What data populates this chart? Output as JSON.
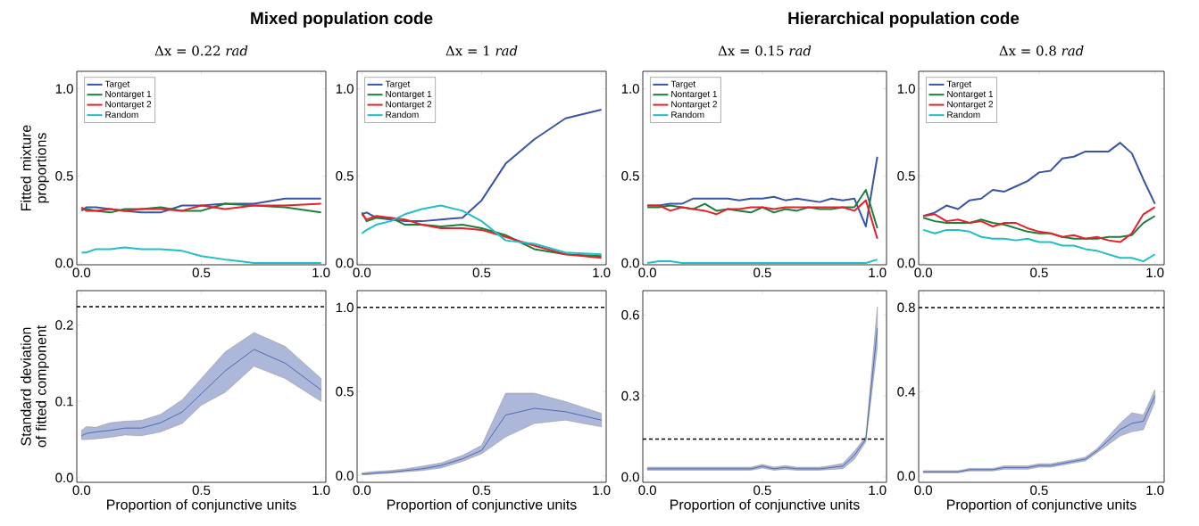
{
  "chart_data": [
    {
      "type": "line",
      "title": "Mixed population code",
      "subtitle": "Δx = 0.22 *rad*",
      "ylabel": "Fitted mixture proportions",
      "legend": "top left",
      "x": [
        0,
        0.02,
        0.06,
        0.12,
        0.18,
        0.25,
        0.33,
        0.42,
        0.5,
        0.6,
        0.72,
        0.85,
        1.0
      ],
      "xlim": [
        -0.02,
        1.02
      ],
      "xticks": [
        {
          "value": 0,
          "label": "0.0"
        },
        {
          "value": 0.5,
          "label": "0.5"
        },
        {
          "value": 1,
          "label": "1.0"
        }
      ],
      "ylim": [
        -0.01,
        1.1
      ],
      "yticks": [
        {
          "value": 0,
          "label": "0.0"
        },
        {
          "value": 0.5,
          "label": "0.5"
        },
        {
          "value": 1,
          "label": "1.0"
        }
      ],
      "series": [
        {
          "name": "Target",
          "color": "#3a54a4",
          "values": [
            0.3,
            0.32,
            0.32,
            0.31,
            0.3,
            0.29,
            0.29,
            0.33,
            0.33,
            0.34,
            0.34,
            0.37,
            0.37
          ]
        },
        {
          "name": "Nontarget 1",
          "color": "#1a7f3a",
          "values": [
            0.31,
            0.31,
            0.3,
            0.29,
            0.31,
            0.31,
            0.32,
            0.3,
            0.3,
            0.34,
            0.33,
            0.32,
            0.29
          ]
        },
        {
          "name": "Nontarget 2",
          "color": "#e8202a",
          "values": [
            0.32,
            0.3,
            0.3,
            0.31,
            0.3,
            0.31,
            0.31,
            0.3,
            0.33,
            0.31,
            0.33,
            0.33,
            0.34
          ]
        },
        {
          "name": "Random",
          "color": "#1fbfc6",
          "values": [
            0.06,
            0.06,
            0.08,
            0.08,
            0.09,
            0.08,
            0.08,
            0.07,
            0.04,
            0.02,
            0.0,
            0.0,
            0.0
          ]
        }
      ]
    },
    {
      "type": "line",
      "subtitle": "Δx = 1 *rad*",
      "legend": "top left",
      "x": [
        0,
        0.02,
        0.06,
        0.12,
        0.18,
        0.25,
        0.33,
        0.42,
        0.5,
        0.6,
        0.72,
        0.85,
        1.0
      ],
      "xlim": [
        -0.02,
        1.02
      ],
      "xticks": [
        {
          "value": 0,
          "label": "0.0"
        },
        {
          "value": 0.5,
          "label": "0.5"
        },
        {
          "value": 1,
          "label": "1.0"
        }
      ],
      "ylim": [
        -0.01,
        1.1
      ],
      "yticks": [
        {
          "value": 0,
          "label": "0.0"
        },
        {
          "value": 0.5,
          "label": "0.5"
        },
        {
          "value": 1,
          "label": "1.0"
        }
      ],
      "series": [
        {
          "name": "Target",
          "color": "#3a54a4",
          "values": [
            0.28,
            0.29,
            0.26,
            0.25,
            0.24,
            0.24,
            0.25,
            0.26,
            0.36,
            0.57,
            0.71,
            0.83,
            0.88
          ]
        },
        {
          "name": "Nontarget 1",
          "color": "#1a7f3a",
          "values": [
            0.29,
            0.24,
            0.26,
            0.26,
            0.22,
            0.22,
            0.21,
            0.22,
            0.2,
            0.16,
            0.08,
            0.05,
            0.04
          ]
        },
        {
          "name": "Nontarget 2",
          "color": "#e8202a",
          "values": [
            0.28,
            0.25,
            0.27,
            0.26,
            0.25,
            0.22,
            0.2,
            0.2,
            0.19,
            0.15,
            0.1,
            0.05,
            0.03
          ]
        },
        {
          "name": "Random",
          "color": "#1fbfc6",
          "values": [
            0.17,
            0.19,
            0.22,
            0.24,
            0.28,
            0.31,
            0.33,
            0.3,
            0.24,
            0.13,
            0.11,
            0.06,
            0.05
          ]
        }
      ]
    },
    {
      "type": "line",
      "title": "Hierarchical population code",
      "subtitle": "Δx = 0.15 *rad*",
      "legend": "top left",
      "x": [
        0,
        0.05,
        0.1,
        0.15,
        0.2,
        0.25,
        0.3,
        0.35,
        0.4,
        0.45,
        0.5,
        0.55,
        0.6,
        0.65,
        0.7,
        0.75,
        0.8,
        0.85,
        0.9,
        0.95,
        1.0
      ],
      "xlim": [
        -0.02,
        1.04
      ],
      "xticks": [
        {
          "value": 0,
          "label": "0.0"
        },
        {
          "value": 0.5,
          "label": "0.5"
        },
        {
          "value": 1,
          "label": "1.0"
        }
      ],
      "ylim": [
        -0.01,
        1.1
      ],
      "yticks": [
        {
          "value": 0,
          "label": "0.0"
        },
        {
          "value": 0.5,
          "label": "0.5"
        },
        {
          "value": 1,
          "label": "1.0"
        }
      ],
      "series": [
        {
          "name": "Target",
          "color": "#3a54a4",
          "values": [
            0.33,
            0.33,
            0.34,
            0.34,
            0.37,
            0.37,
            0.37,
            0.37,
            0.36,
            0.37,
            0.37,
            0.38,
            0.36,
            0.37,
            0.36,
            0.35,
            0.37,
            0.36,
            0.37,
            0.21,
            0.61
          ]
        },
        {
          "name": "Nontarget 1",
          "color": "#1a7f3a",
          "values": [
            0.32,
            0.32,
            0.33,
            0.32,
            0.31,
            0.34,
            0.3,
            0.31,
            0.3,
            0.29,
            0.32,
            0.29,
            0.31,
            0.3,
            0.32,
            0.31,
            0.31,
            0.32,
            0.32,
            0.42,
            0.2
          ]
        },
        {
          "name": "Nontarget 2",
          "color": "#e8202a",
          "values": [
            0.33,
            0.33,
            0.3,
            0.32,
            0.31,
            0.3,
            0.28,
            0.31,
            0.31,
            0.32,
            0.32,
            0.31,
            0.32,
            0.32,
            0.32,
            0.32,
            0.32,
            0.32,
            0.3,
            0.36,
            0.14
          ]
        },
        {
          "name": "Random",
          "color": "#1fbfc6",
          "values": [
            0.0,
            0.01,
            0.01,
            0.0,
            0.0,
            0.0,
            0.0,
            0.0,
            0.0,
            0.0,
            0.0,
            0.0,
            0.0,
            0.0,
            0.0,
            0.0,
            0.0,
            0.0,
            0.0,
            0.0,
            0.02
          ]
        }
      ]
    },
    {
      "type": "line",
      "subtitle": "Δx = 0.8 *rad*",
      "legend": "top left",
      "x": [
        0,
        0.05,
        0.1,
        0.15,
        0.2,
        0.25,
        0.3,
        0.35,
        0.4,
        0.45,
        0.5,
        0.55,
        0.6,
        0.65,
        0.7,
        0.75,
        0.8,
        0.85,
        0.9,
        0.95,
        1.0
      ],
      "xlim": [
        -0.02,
        1.04
      ],
      "xticks": [
        {
          "value": 0,
          "label": "0.0"
        },
        {
          "value": 0.5,
          "label": "0.5"
        },
        {
          "value": 1,
          "label": "1.0"
        }
      ],
      "ylim": [
        -0.01,
        1.1
      ],
      "yticks": [
        {
          "value": 0,
          "label": "0.0"
        },
        {
          "value": 0.5,
          "label": "0.5"
        },
        {
          "value": 1,
          "label": "1.0"
        }
      ],
      "series": [
        {
          "name": "Target",
          "color": "#3a54a4",
          "values": [
            0.27,
            0.29,
            0.33,
            0.31,
            0.36,
            0.37,
            0.42,
            0.41,
            0.44,
            0.47,
            0.52,
            0.53,
            0.6,
            0.61,
            0.64,
            0.64,
            0.64,
            0.69,
            0.63,
            0.48,
            0.34
          ]
        },
        {
          "name": "Nontarget 1",
          "color": "#1a7f3a",
          "values": [
            0.26,
            0.24,
            0.23,
            0.23,
            0.23,
            0.25,
            0.23,
            0.22,
            0.2,
            0.18,
            0.17,
            0.17,
            0.15,
            0.14,
            0.14,
            0.14,
            0.15,
            0.15,
            0.16,
            0.23,
            0.27
          ]
        },
        {
          "name": "Nontarget 2",
          "color": "#e8202a",
          "values": [
            0.27,
            0.28,
            0.24,
            0.25,
            0.23,
            0.24,
            0.21,
            0.23,
            0.23,
            0.2,
            0.18,
            0.17,
            0.15,
            0.16,
            0.14,
            0.15,
            0.13,
            0.12,
            0.17,
            0.28,
            0.32
          ]
        },
        {
          "name": "Random",
          "color": "#1fbfc6",
          "values": [
            0.19,
            0.17,
            0.19,
            0.19,
            0.18,
            0.15,
            0.14,
            0.14,
            0.13,
            0.14,
            0.12,
            0.12,
            0.1,
            0.1,
            0.08,
            0.07,
            0.05,
            0.03,
            0.03,
            0.01,
            0.05
          ]
        }
      ]
    },
    {
      "type": "line",
      "ylabel": "Standard deviation of fitted component",
      "xlabel": "Proportion of conjunctive units",
      "x": [
        0,
        0.02,
        0.06,
        0.12,
        0.18,
        0.25,
        0.33,
        0.42,
        0.5,
        0.6,
        0.72,
        0.85,
        1.0
      ],
      "xlim": [
        -0.02,
        1.02
      ],
      "xticks": [
        {
          "value": 0,
          "label": "0.0"
        },
        {
          "value": 0.5,
          "label": "0.5"
        },
        {
          "value": 1,
          "label": "1.0"
        }
      ],
      "ylim": [
        -0.006,
        0.245
      ],
      "yticks": [
        {
          "value": 0,
          "label": "0.0"
        },
        0.1,
        0.2
      ],
      "ref_lines": [
        {
          "axis": "y",
          "value": 0.224,
          "line_style": "dashed"
        }
      ],
      "series": [
        {
          "color": "#3a54a4",
          "values": [
            0.055,
            0.058,
            0.06,
            0.062,
            0.065,
            0.065,
            0.072,
            0.086,
            0.11,
            0.14,
            0.168,
            0.15,
            0.115
          ],
          "lower": [
            0.05,
            0.05,
            0.051,
            0.053,
            0.056,
            0.055,
            0.06,
            0.071,
            0.095,
            0.112,
            0.146,
            0.13,
            0.1
          ],
          "upper": [
            0.062,
            0.067,
            0.066,
            0.072,
            0.074,
            0.075,
            0.083,
            0.102,
            0.13,
            0.165,
            0.19,
            0.172,
            0.13
          ]
        }
      ]
    },
    {
      "type": "line",
      "xlabel": "Proportion of conjunctive units",
      "x": [
        0,
        0.02,
        0.06,
        0.12,
        0.18,
        0.25,
        0.33,
        0.42,
        0.5,
        0.6,
        0.72,
        0.85,
        1.0
      ],
      "xlim": [
        -0.02,
        1.02
      ],
      "xticks": [
        {
          "value": 0,
          "label": "0.0"
        },
        {
          "value": 0.5,
          "label": "0.5"
        },
        {
          "value": 1,
          "label": "1.0"
        }
      ],
      "ylim": [
        -0.04,
        1.1
      ],
      "yticks": [
        {
          "value": 0,
          "label": "0.0"
        },
        {
          "value": 0.5,
          "label": "0.5"
        },
        {
          "value": 1,
          "label": "1.0"
        }
      ],
      "ref_lines": [
        {
          "axis": "y",
          "value": 1.0,
          "line_style": "dashed"
        }
      ],
      "series": [
        {
          "color": "#3a54a4",
          "values": [
            0.01,
            0.01,
            0.015,
            0.02,
            0.03,
            0.04,
            0.06,
            0.1,
            0.15,
            0.36,
            0.4,
            0.38,
            0.33
          ],
          "lower": [
            0.005,
            0.005,
            0.01,
            0.015,
            0.022,
            0.03,
            0.045,
            0.085,
            0.13,
            0.23,
            0.31,
            0.33,
            0.29
          ],
          "upper": [
            0.015,
            0.02,
            0.025,
            0.03,
            0.04,
            0.055,
            0.075,
            0.12,
            0.18,
            0.49,
            0.49,
            0.44,
            0.37
          ]
        }
      ]
    },
    {
      "type": "line",
      "xlabel": "Proportion of conjunctive units",
      "x": [
        0,
        0.05,
        0.1,
        0.15,
        0.2,
        0.25,
        0.3,
        0.35,
        0.4,
        0.45,
        0.5,
        0.55,
        0.6,
        0.65,
        0.7,
        0.75,
        0.8,
        0.85,
        0.9,
        0.95,
        1.0
      ],
      "xlim": [
        -0.02,
        1.04
      ],
      "xticks": [
        {
          "value": 0,
          "label": "0.0"
        },
        {
          "value": 0.5,
          "label": "0.5"
        },
        {
          "value": 1,
          "label": "1.0"
        }
      ],
      "ylim": [
        -0.02,
        0.69
      ],
      "yticks": [
        {
          "value": 0,
          "label": "0.0"
        },
        0.3,
        0.6
      ],
      "ref_lines": [
        {
          "axis": "y",
          "value": 0.14,
          "line_style": "dashed"
        }
      ],
      "series": [
        {
          "color": "#3a54a4",
          "values": [
            0.03,
            0.03,
            0.03,
            0.03,
            0.03,
            0.03,
            0.03,
            0.03,
            0.03,
            0.03,
            0.04,
            0.03,
            0.035,
            0.03,
            0.03,
            0.03,
            0.035,
            0.04,
            0.08,
            0.14,
            0.55
          ],
          "lower": [
            0.025,
            0.025,
            0.025,
            0.025,
            0.025,
            0.025,
            0.025,
            0.025,
            0.025,
            0.025,
            0.033,
            0.025,
            0.028,
            0.025,
            0.025,
            0.025,
            0.028,
            0.03,
            0.065,
            0.13,
            0.48
          ],
          "upper": [
            0.036,
            0.036,
            0.036,
            0.036,
            0.036,
            0.036,
            0.036,
            0.036,
            0.036,
            0.036,
            0.046,
            0.036,
            0.042,
            0.036,
            0.036,
            0.036,
            0.042,
            0.05,
            0.095,
            0.15,
            0.63
          ]
        }
      ]
    },
    {
      "type": "line",
      "xlabel": "Proportion of conjunctive units",
      "x": [
        0,
        0.05,
        0.1,
        0.15,
        0.2,
        0.25,
        0.3,
        0.35,
        0.4,
        0.45,
        0.5,
        0.55,
        0.6,
        0.65,
        0.7,
        0.75,
        0.8,
        0.85,
        0.9,
        0.95,
        1.0
      ],
      "xlim": [
        -0.02,
        1.04
      ],
      "xticks": [
        {
          "value": 0,
          "label": "0.0"
        },
        {
          "value": 0.5,
          "label": "0.5"
        },
        {
          "value": 1,
          "label": "1.0"
        }
      ],
      "ylim": [
        -0.03,
        0.88
      ],
      "yticks": [
        {
          "value": 0,
          "label": "0.0"
        },
        0.4,
        0.8
      ],
      "ref_lines": [
        {
          "axis": "y",
          "value": 0.8,
          "line_style": "dashed"
        }
      ],
      "series": [
        {
          "color": "#3a54a4",
          "values": [
            0.02,
            0.02,
            0.02,
            0.02,
            0.03,
            0.03,
            0.03,
            0.04,
            0.04,
            0.04,
            0.05,
            0.05,
            0.06,
            0.07,
            0.08,
            0.12,
            0.17,
            0.22,
            0.25,
            0.26,
            0.38
          ],
          "lower": [
            0.015,
            0.015,
            0.015,
            0.015,
            0.024,
            0.024,
            0.024,
            0.032,
            0.032,
            0.032,
            0.042,
            0.042,
            0.052,
            0.062,
            0.072,
            0.11,
            0.15,
            0.19,
            0.21,
            0.22,
            0.35
          ],
          "upper": [
            0.025,
            0.025,
            0.025,
            0.025,
            0.036,
            0.036,
            0.036,
            0.048,
            0.048,
            0.048,
            0.058,
            0.058,
            0.068,
            0.078,
            0.09,
            0.13,
            0.19,
            0.25,
            0.3,
            0.29,
            0.41
          ]
        }
      ]
    }
  ]
}
